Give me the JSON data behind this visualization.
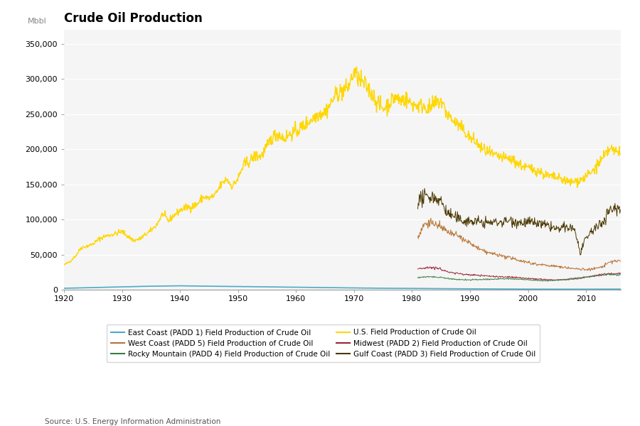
{
  "title": "Crude Oil Production",
  "ylabel": "Mbbl",
  "source": "Source: U.S. Energy Information Administration",
  "ylim": [
    0,
    370000
  ],
  "xlim": [
    1920,
    2016
  ],
  "yticks": [
    0,
    50000,
    100000,
    150000,
    200000,
    250000,
    300000,
    350000
  ],
  "xticks": [
    1920,
    1930,
    1940,
    1950,
    1960,
    1970,
    1980,
    1990,
    2000,
    2010
  ],
  "bg_color": "#ffffff",
  "plot_bg_color": "#f5f5f5",
  "grid_color": "#ffffff",
  "series": {
    "US_total": {
      "label": "U.S. Field Production of Crude Oil",
      "color": "#FFD700",
      "lw": 1.0
    },
    "gulf_coast": {
      "label": "Gulf Coast (PADD 3) Field Production of Crude Oil",
      "color": "#4b3800",
      "lw": 0.7
    },
    "west_coast": {
      "label": "West Coast (PADD 5) Field Production of Crude Oil",
      "color": "#b87333",
      "lw": 0.7
    },
    "midwest": {
      "label": "Midwest (PADD 2) Field Production of Crude Oil",
      "color": "#9b2335",
      "lw": 0.7
    },
    "rocky_mountain": {
      "label": "Rocky Mountain (PADD 4) Field Production of Crude Oil",
      "color": "#3a7d44",
      "lw": 0.7
    },
    "east_coast": {
      "label": "East Coast (PADD 1) Field Production of Crude Oil",
      "color": "#4bacc6",
      "lw": 1.2
    }
  },
  "legend": {
    "ncol": 2,
    "fontsize": 7.5,
    "frameon": true,
    "edgecolor": "#cccccc"
  },
  "title_fontsize": 12,
  "label_fontsize": 8,
  "tick_fontsize": 8
}
